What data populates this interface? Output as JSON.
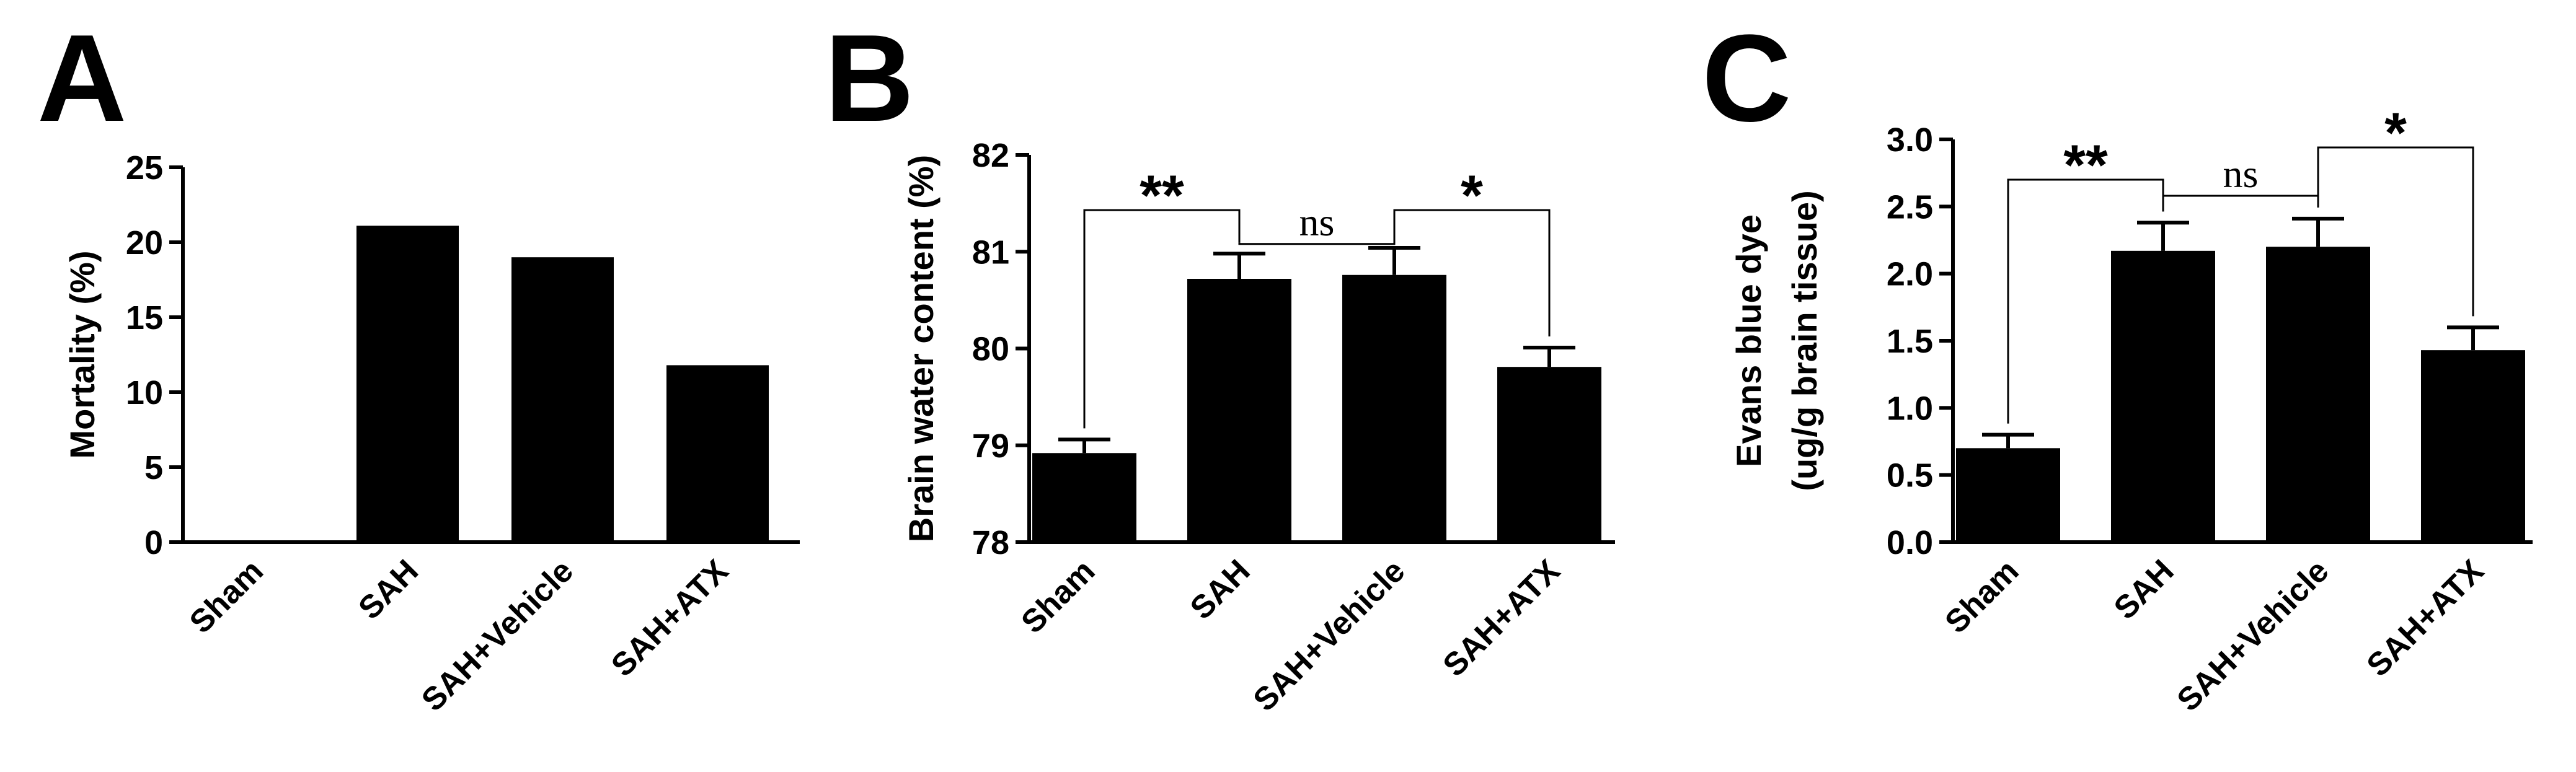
{
  "chart_data": [
    {
      "type": "bar",
      "panel": "A",
      "categories": [
        "Sham",
        "SAH",
        "SAH+Vehicle",
        "SAH+ATX"
      ],
      "values": [
        0,
        21.1,
        19,
        11.8
      ],
      "ylabel": "Mortality (%)",
      "ylim": [
        0,
        25
      ],
      "yticks": [
        "0",
        "5",
        "10",
        "15",
        "20",
        "25"
      ],
      "significance": []
    },
    {
      "type": "bar",
      "panel": "B",
      "categories": [
        "Sham",
        "SAH",
        "SAH+Vehicle",
        "SAH+ATX"
      ],
      "values": [
        78.92,
        80.72,
        80.76,
        79.81
      ],
      "errors": [
        0.14,
        0.26,
        0.28,
        0.2
      ],
      "ylabel": "Brain water content (%)",
      "ylim": [
        78,
        82
      ],
      "yticks": [
        "78",
        "79",
        "80",
        "81",
        "82"
      ],
      "significance": [
        {
          "from": 0,
          "to": 1,
          "label": "**",
          "level": 81.43
        },
        {
          "from": 1,
          "to": 2,
          "label": "ns",
          "level": 81.08
        },
        {
          "from": 2,
          "to": 3,
          "label": "*",
          "level": 81.43
        }
      ]
    },
    {
      "type": "bar",
      "panel": "C",
      "categories": [
        "Sham",
        "SAH",
        "SAH+Vehicle",
        "SAH+ATX"
      ],
      "values": [
        0.7,
        2.17,
        2.2,
        1.43
      ],
      "errors": [
        0.1,
        0.21,
        0.21,
        0.17
      ],
      "ylabel": "Evans blue dye",
      "ylabel2": "(ug/g brain tissue)",
      "ylim": [
        0,
        3
      ],
      "yticks": [
        "0.0",
        "0.5",
        "1.0",
        "1.5",
        "2.0",
        "2.5",
        "3.0"
      ],
      "significance": [
        {
          "from": 0,
          "to": 1,
          "label": "**",
          "level": 2.7
        },
        {
          "from": 1,
          "to": 2,
          "label": "ns",
          "level": 2.58
        },
        {
          "from": 2,
          "to": 3,
          "label": "*",
          "level": 2.94
        }
      ]
    }
  ]
}
